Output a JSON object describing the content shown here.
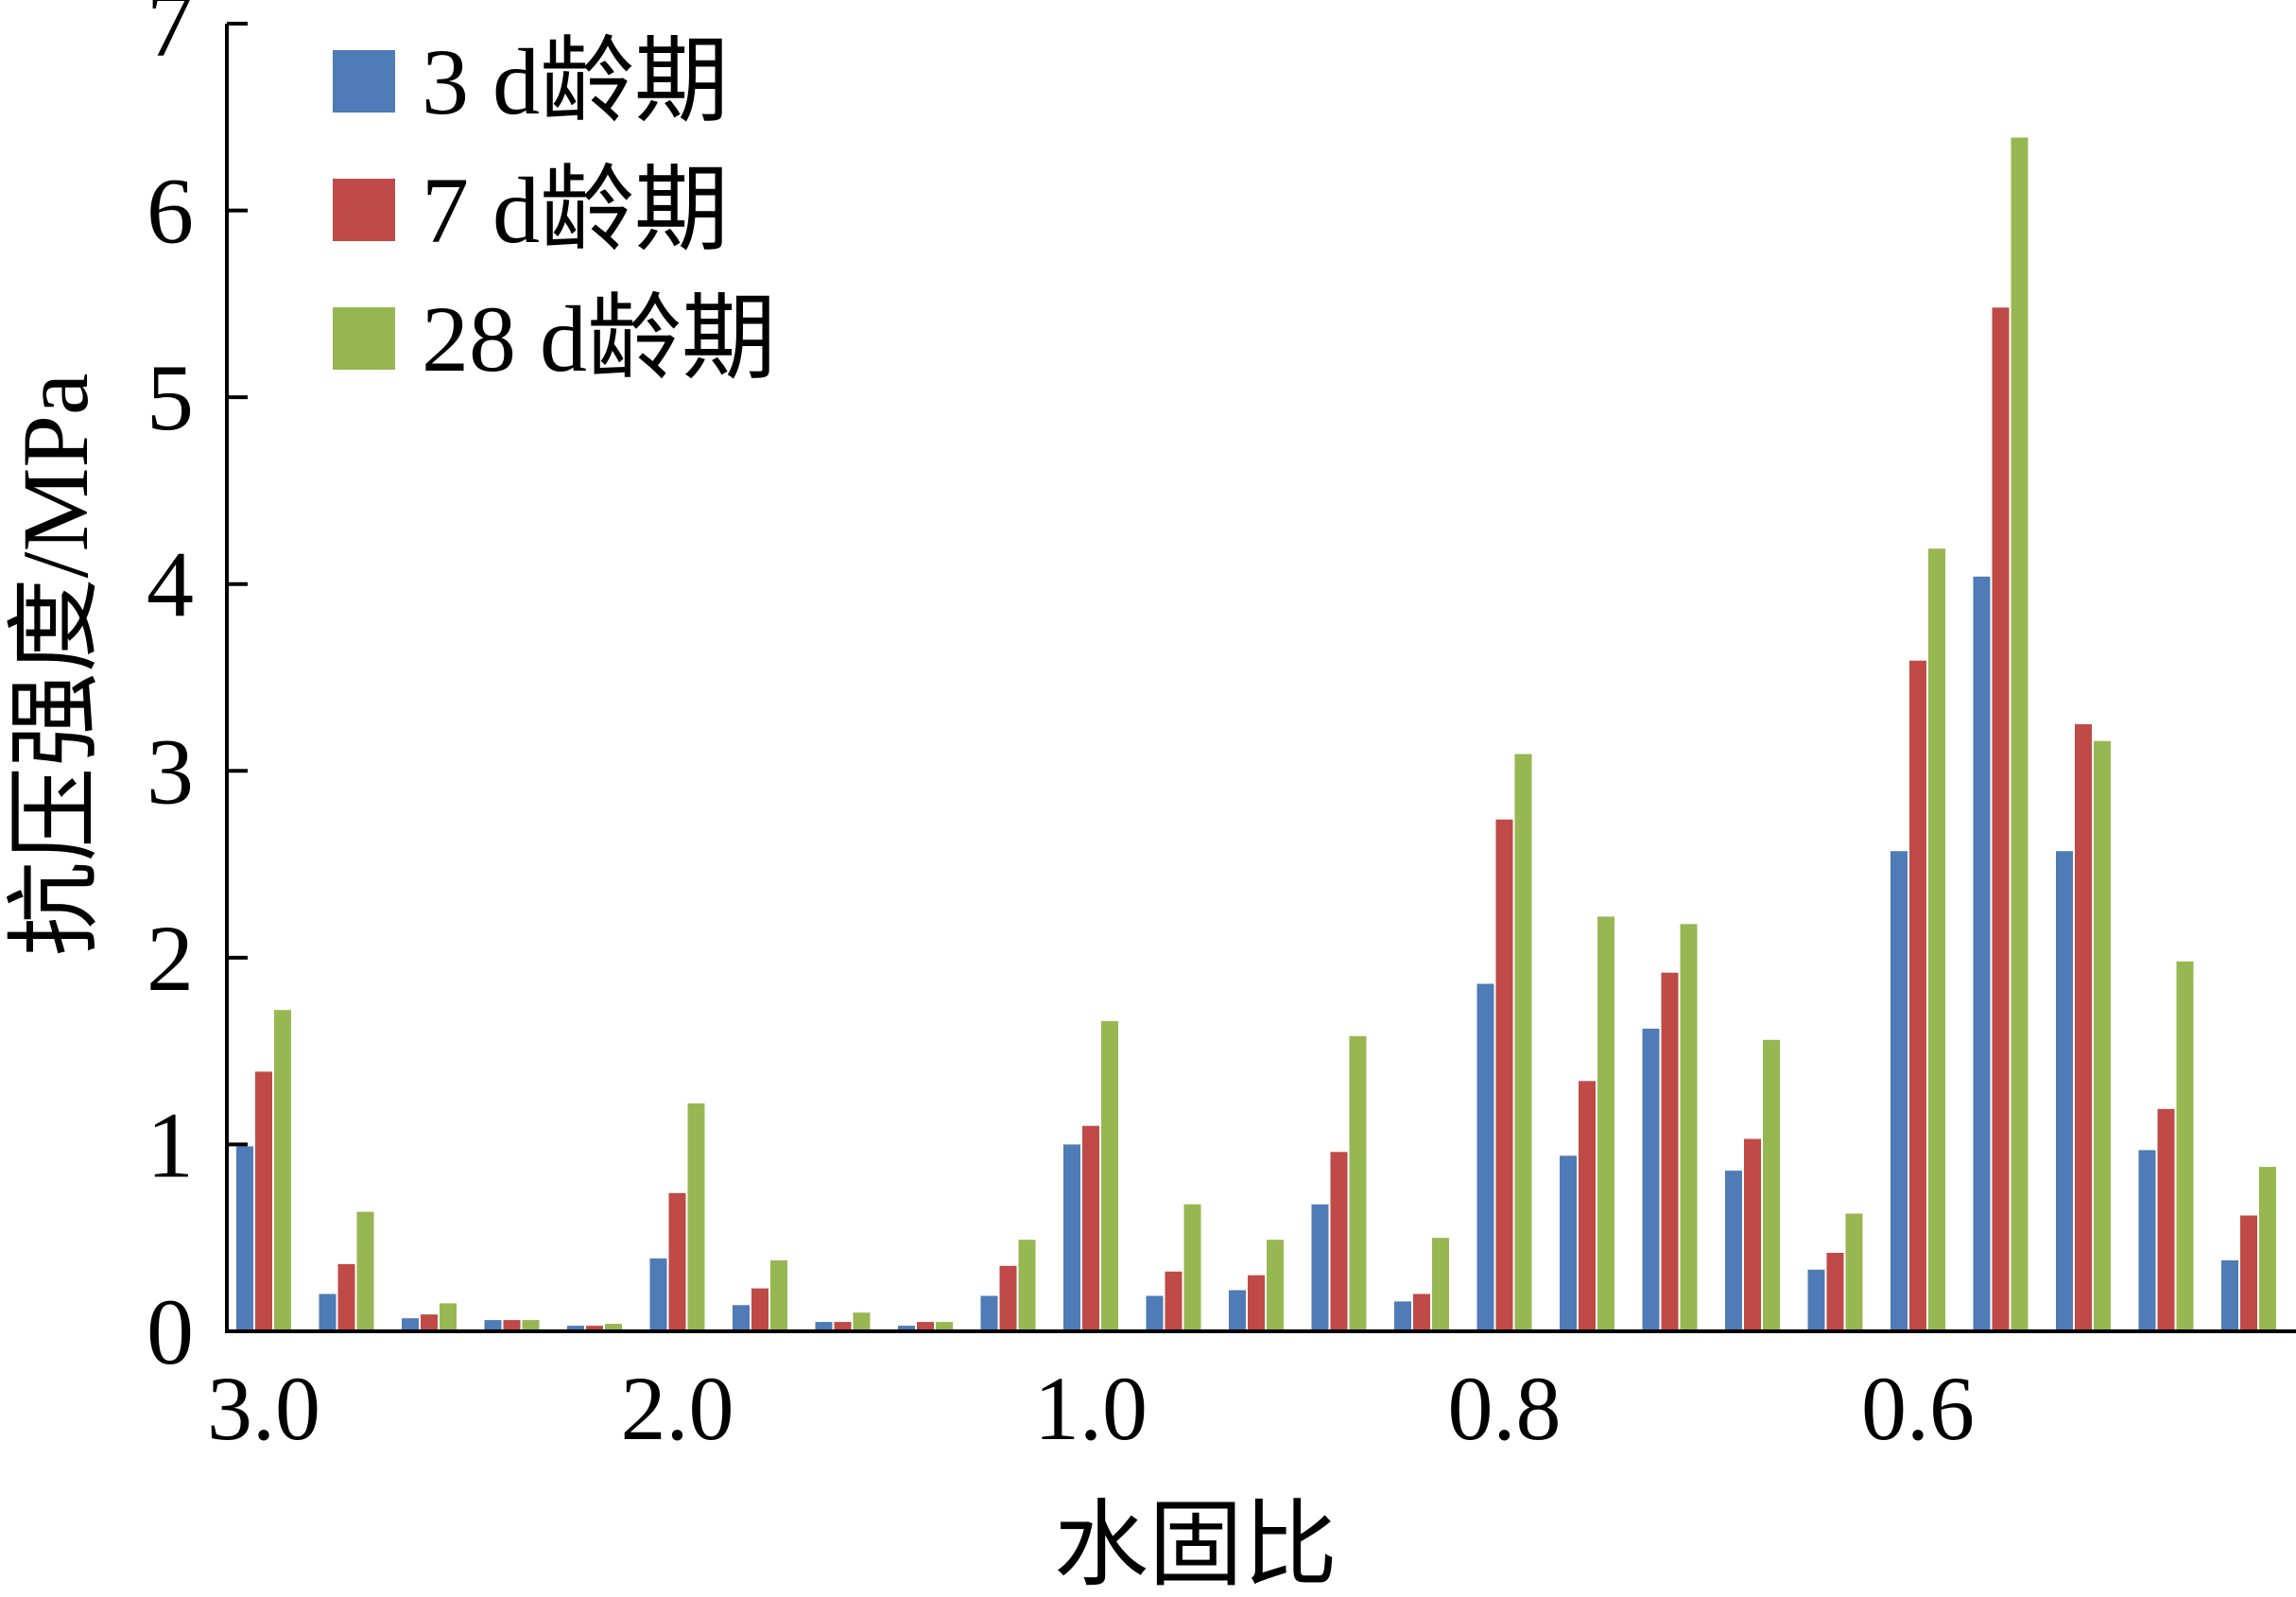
{
  "chart_data": {
    "type": "bar",
    "xlabel": "水固比",
    "ylabel": "抗压强度/MPa",
    "ylim": [
      0,
      7
    ],
    "yticks": [
      "0",
      "1",
      "2",
      "3",
      "4",
      "5",
      "6",
      "7"
    ],
    "xtick_labels": [
      "3.0",
      "2.0",
      "1.0",
      "0.8",
      "0.6"
    ],
    "xtick_group_index": [
      0,
      5,
      10,
      15,
      20
    ],
    "grid": false,
    "legend_position": "top-left",
    "series": [
      {
        "name": "3 d龄期",
        "color": "#4f7bb6",
        "values": [
          0.99,
          0.2,
          0.07,
          0.06,
          0.03,
          0.39,
          0.14,
          0.05,
          0.03,
          0.19,
          1.0,
          0.19,
          0.22,
          0.68,
          0.16,
          1.86,
          0.94,
          1.62,
          0.86,
          0.33,
          2.57,
          4.04,
          2.57,
          0.97,
          0.38
        ]
      },
      {
        "name": "7 d龄期",
        "color": "#bf4a47",
        "values": [
          1.39,
          0.36,
          0.09,
          0.06,
          0.03,
          0.74,
          0.23,
          0.05,
          0.05,
          0.35,
          1.1,
          0.32,
          0.3,
          0.96,
          0.2,
          2.74,
          1.34,
          1.92,
          1.03,
          0.42,
          3.59,
          5.48,
          3.25,
          1.19,
          0.62
        ]
      },
      {
        "name": "28 d龄期",
        "color": "#97b752",
        "values": [
          1.72,
          0.64,
          0.15,
          0.06,
          0.04,
          1.22,
          0.38,
          0.1,
          0.05,
          0.49,
          1.66,
          0.68,
          0.49,
          1.58,
          0.5,
          3.09,
          2.22,
          2.18,
          1.56,
          0.63,
          4.19,
          6.39,
          3.16,
          1.98,
          0.88
        ]
      }
    ]
  }
}
